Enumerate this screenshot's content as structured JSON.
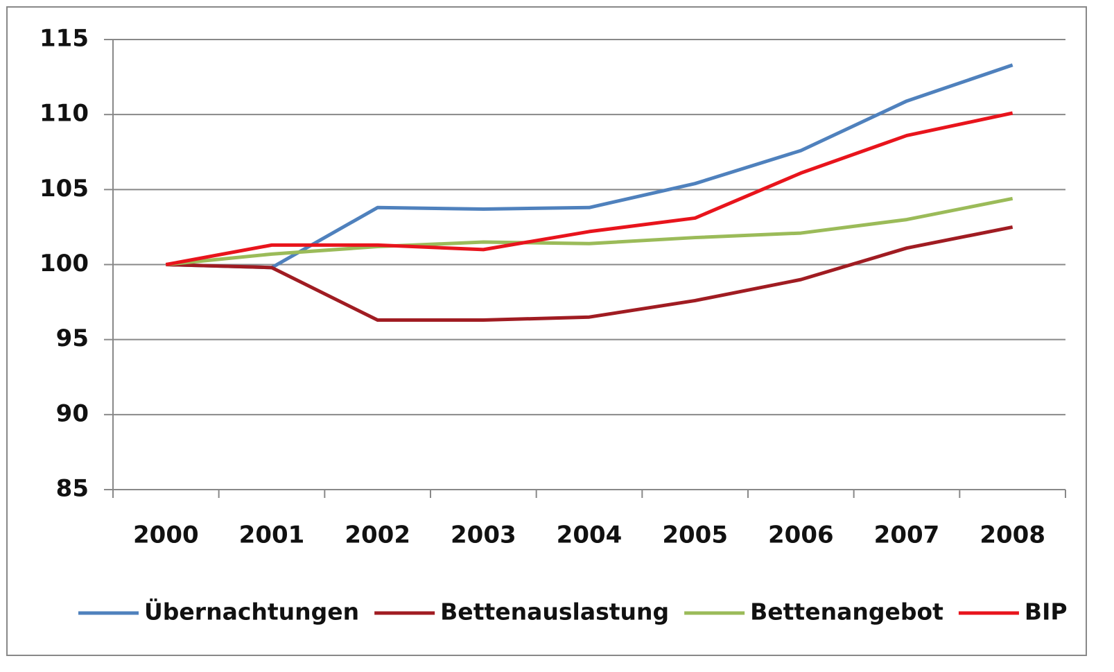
{
  "chart_data": {
    "type": "line",
    "categories": [
      "2000",
      "2001",
      "2002",
      "2003",
      "2004",
      "2005",
      "2006",
      "2007",
      "2008"
    ],
    "series": [
      {
        "name": "Übernachtungen",
        "color": "#4f81bd",
        "values": [
          100,
          99.8,
          103.8,
          103.7,
          103.8,
          105.4,
          107.6,
          110.9,
          113.3
        ]
      },
      {
        "name": "Bettenauslastung",
        "color": "#a01c22",
        "values": [
          100,
          99.8,
          96.3,
          96.3,
          96.5,
          97.6,
          99.0,
          101.1,
          102.5
        ]
      },
      {
        "name": "Bettenangebot",
        "color": "#9bbb59",
        "values": [
          100,
          100.7,
          101.2,
          101.5,
          101.4,
          101.8,
          102.1,
          103.0,
          104.4
        ]
      },
      {
        "name": "BIP",
        "color": "#e8141c",
        "values": [
          100,
          101.3,
          101.3,
          101.0,
          102.2,
          103.1,
          106.1,
          108.6,
          110.1
        ]
      }
    ],
    "ylim": [
      85,
      115
    ],
    "yticks": [
      85,
      90,
      95,
      100,
      105,
      110,
      115
    ],
    "grid": true,
    "legend": "bottom"
  }
}
